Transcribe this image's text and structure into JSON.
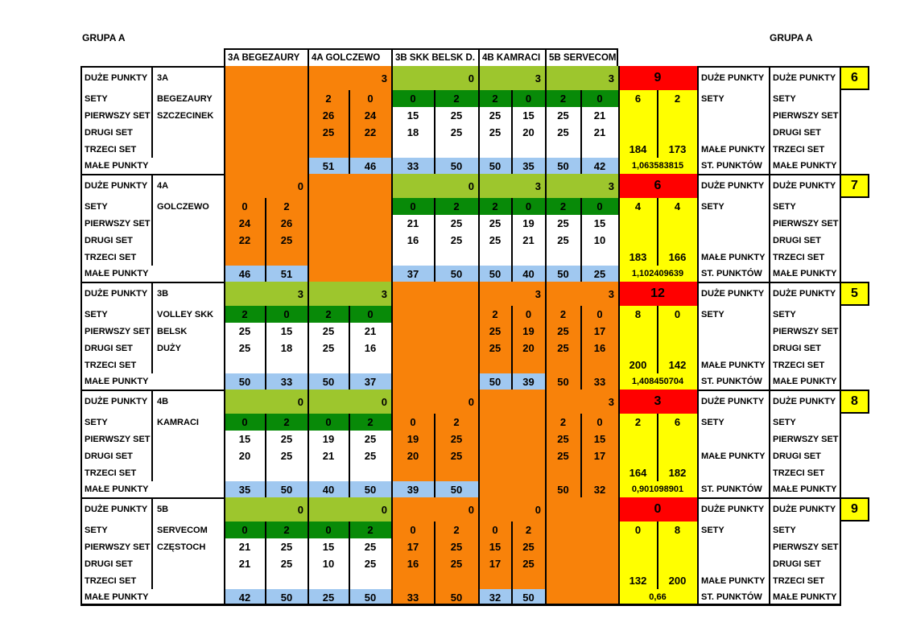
{
  "group_label_left": "GRUPA A",
  "group_label_right": "GRUPA A",
  "colors": {
    "orange": "#F8820A",
    "light_green": "#9DC62D",
    "dark_green": "#088A08",
    "red": "#FF0000",
    "yellow": "#FFFF00",
    "light_blue": "#A0C8F0",
    "border": "#000000"
  },
  "header": {
    "columns": [
      "3A BEGEZAURY",
      "4A GOLCZEWO",
      "3B SKK BELSK D.",
      "4B KAMRACI",
      "5B SERVECOM"
    ]
  },
  "row_labels_left": [
    "DUŻE PUNKTY",
    "SETY",
    "PIERWSZY SET",
    "DRUGI SET",
    "TRZECI SET",
    "MAŁE PUNKTY"
  ],
  "right_labels_full": [
    "DUŻE PUNKTY",
    "SETY",
    "PIERWSZY SET",
    "DRUGI SET",
    "TRZECI SET",
    "MAŁE PUNKTY"
  ],
  "blocks": [
    {
      "team_lines": [
        "3A",
        "BEGEZAURY",
        "SZCZECINEK",
        "",
        "",
        ""
      ],
      "col3_labels": [
        "DUŻE PUNKTY",
        "SETY",
        "",
        "",
        "MAŁE PUNKTY",
        "ST. PUNKTÓW"
      ],
      "rank": "6",
      "summary": {
        "big_points": "9",
        "sets": [
          "6",
          "2"
        ],
        "small_points": [
          "184",
          "173"
        ],
        "ratio": "1,063583815"
      },
      "games": [
        {
          "self": true
        },
        {
          "big": "3",
          "big_bg": "orange",
          "sets": [
            "2",
            "0"
          ],
          "sets_bg": "orange",
          "set1": [
            "26",
            "24"
          ],
          "set2": [
            "25",
            "22"
          ],
          "set3": [
            "",
            ""
          ],
          "body_bg": "orange",
          "small": [
            "51",
            "46"
          ],
          "small_bg": "blue"
        },
        {
          "big": "0",
          "big_bg": "green",
          "sets": [
            "0",
            "2"
          ],
          "sets_bg": "dgreen",
          "set1": [
            "15",
            "25"
          ],
          "set2": [
            "18",
            "25"
          ],
          "set3": [
            "",
            ""
          ],
          "body_bg": "white",
          "small": [
            "33",
            "50"
          ],
          "small_bg": "blue"
        },
        {
          "big": "3",
          "big_bg": "green",
          "sets": [
            "2",
            "0"
          ],
          "sets_bg": "dgreen",
          "set1": [
            "25",
            "15"
          ],
          "set2": [
            "25",
            "20"
          ],
          "set3": [
            "",
            ""
          ],
          "body_bg": "white",
          "small": [
            "50",
            "35"
          ],
          "small_bg": "blue"
        },
        {
          "big": "3",
          "big_bg": "green",
          "sets": [
            "2",
            "0"
          ],
          "sets_bg": "dgreen",
          "set1": [
            "25",
            "21"
          ],
          "set2": [
            "25",
            "21"
          ],
          "set3": [
            "",
            ""
          ],
          "body_bg": "white",
          "small": [
            "50",
            "42"
          ],
          "small_bg": "blue"
        }
      ]
    },
    {
      "team_lines": [
        "4A",
        "GOLCZEWO",
        "",
        "",
        "",
        ""
      ],
      "col3_labels": [
        "DUŻE PUNKTY",
        "SETY",
        "",
        "",
        "MAŁE PUNKTY",
        "ST. PUNKTÓW"
      ],
      "rank": "7",
      "summary": {
        "big_points": "6",
        "sets": [
          "4",
          "4"
        ],
        "small_points": [
          "183",
          "166"
        ],
        "ratio": "1,102409639"
      },
      "games": [
        {
          "big": "0",
          "big_bg": "orange",
          "sets": [
            "0",
            "2"
          ],
          "sets_bg": "orange",
          "set1": [
            "24",
            "26"
          ],
          "set2": [
            "22",
            "25"
          ],
          "set3": [
            "",
            ""
          ],
          "body_bg": "orange",
          "small": [
            "46",
            "51"
          ],
          "small_bg": "blue"
        },
        {
          "self": true
        },
        {
          "big": "0",
          "big_bg": "green",
          "sets": [
            "0",
            "2"
          ],
          "sets_bg": "dgreen",
          "set1": [
            "21",
            "25"
          ],
          "set2": [
            "16",
            "25"
          ],
          "set3": [
            "",
            ""
          ],
          "body_bg": "white",
          "small": [
            "37",
            "50"
          ],
          "small_bg": "blue"
        },
        {
          "big": "3",
          "big_bg": "green",
          "sets": [
            "2",
            "0"
          ],
          "sets_bg": "dgreen",
          "set1": [
            "25",
            "19"
          ],
          "set2": [
            "25",
            "21"
          ],
          "set3": [
            "",
            ""
          ],
          "body_bg": "white",
          "small": [
            "50",
            "40"
          ],
          "small_bg": "blue"
        },
        {
          "big": "3",
          "big_bg": "green",
          "sets": [
            "2",
            "0"
          ],
          "sets_bg": "dgreen",
          "set1": [
            "25",
            "15"
          ],
          "set2": [
            "25",
            "10"
          ],
          "set3": [
            "",
            ""
          ],
          "body_bg": "white",
          "small": [
            "50",
            "25"
          ],
          "small_bg": "blue"
        }
      ]
    },
    {
      "team_lines": [
        "3B",
        "VOLLEY SKK",
        "BELSK",
        "DUŻY",
        "",
        ""
      ],
      "col3_labels": [
        "DUŻE PUNKTY",
        "SETY",
        "",
        "",
        "MAŁE PUNKTY",
        "ST. PUNKTÓW"
      ],
      "rank": "5",
      "summary": {
        "big_points": "12",
        "sets": [
          "8",
          "0"
        ],
        "small_points": [
          "200",
          "142"
        ],
        "ratio": "1,408450704"
      },
      "games": [
        {
          "big": "3",
          "big_bg": "green",
          "sets": [
            "2",
            "0"
          ],
          "sets_bg": "dgreen",
          "set1": [
            "25",
            "15"
          ],
          "set2": [
            "25",
            "18"
          ],
          "set3": [
            "",
            ""
          ],
          "body_bg": "white",
          "small": [
            "50",
            "33"
          ],
          "small_bg": "blue"
        },
        {
          "big": "3",
          "big_bg": "green",
          "sets": [
            "2",
            "0"
          ],
          "sets_bg": "dgreen",
          "set1": [
            "25",
            "21"
          ],
          "set2": [
            "25",
            "16"
          ],
          "set3": [
            "",
            ""
          ],
          "body_bg": "white",
          "small": [
            "50",
            "37"
          ],
          "small_bg": "blue"
        },
        {
          "self": true
        },
        {
          "big": "3",
          "big_bg": "orange",
          "sets": [
            "2",
            "0"
          ],
          "sets_bg": "orange",
          "set1": [
            "25",
            "19"
          ],
          "set2": [
            "25",
            "20"
          ],
          "set3": [
            "",
            ""
          ],
          "body_bg": "orange",
          "small": [
            "50",
            "39"
          ],
          "small_bg": "blue"
        },
        {
          "big": "3",
          "big_bg": "orange",
          "sets": [
            "2",
            "0"
          ],
          "sets_bg": "orange",
          "set1": [
            "25",
            "17"
          ],
          "set2": [
            "25",
            "16"
          ],
          "set3": [
            "",
            ""
          ],
          "body_bg": "orange",
          "small": [
            "50",
            "33"
          ],
          "small_bg": "orange"
        }
      ]
    },
    {
      "team_lines": [
        "4B",
        "KAMRACI",
        "",
        "",
        "",
        ""
      ],
      "col3_labels": [
        "DUŻE PUNKTY",
        "SETY",
        "",
        "MAŁE PUNKTY",
        "",
        "ST. PUNKTÓW"
      ],
      "rank": "8",
      "summary": {
        "big_points": "3",
        "sets": [
          "2",
          "6"
        ],
        "small_points": [
          "164",
          "182"
        ],
        "ratio": "0,901098901"
      },
      "games": [
        {
          "big": "0",
          "big_bg": "green",
          "sets": [
            "0",
            "2"
          ],
          "sets_bg": "dgreen",
          "set1": [
            "15",
            "25"
          ],
          "set2": [
            "20",
            "25"
          ],
          "set3": [
            "",
            ""
          ],
          "body_bg": "white",
          "small": [
            "35",
            "50"
          ],
          "small_bg": "blue"
        },
        {
          "big": "0",
          "big_bg": "green",
          "sets": [
            "0",
            "2"
          ],
          "sets_bg": "dgreen",
          "set1": [
            "19",
            "25"
          ],
          "set2": [
            "21",
            "25"
          ],
          "set3": [
            "",
            ""
          ],
          "body_bg": "white",
          "small": [
            "40",
            "50"
          ],
          "small_bg": "blue"
        },
        {
          "big": "0",
          "big_bg": "orange",
          "sets": [
            "0",
            "2"
          ],
          "sets_bg": "orange",
          "set1": [
            "19",
            "25"
          ],
          "set2": [
            "20",
            "25"
          ],
          "set3": [
            "",
            ""
          ],
          "body_bg": "orange",
          "small": [
            "39",
            "50"
          ],
          "small_bg": "blue"
        },
        {
          "self": true
        },
        {
          "big": "3",
          "big_bg": "orange",
          "sets": [
            "2",
            "0"
          ],
          "sets_bg": "orange",
          "set1": [
            "25",
            "15"
          ],
          "set2": [
            "25",
            "17"
          ],
          "set3": [
            "",
            ""
          ],
          "body_bg": "orange",
          "small": [
            "50",
            "32"
          ],
          "small_bg": "orange"
        }
      ]
    },
    {
      "team_lines": [
        "5B",
        "SERVECOM",
        "CZĘSTOCH",
        "",
        "",
        ""
      ],
      "col3_labels": [
        "DUŻE PUNKTY",
        "SETY",
        "",
        "",
        "MAŁE PUNKTY",
        "ST. PUNKTÓW"
      ],
      "rank": "9",
      "summary": {
        "big_points": "0",
        "sets": [
          "0",
          "8"
        ],
        "small_points": [
          "132",
          "200"
        ],
        "ratio": "0,66"
      },
      "games": [
        {
          "big": "0",
          "big_bg": "green",
          "sets": [
            "0",
            "2"
          ],
          "sets_bg": "dgreen",
          "set1": [
            "21",
            "25"
          ],
          "set2": [
            "21",
            "25"
          ],
          "set3": [
            "",
            ""
          ],
          "body_bg": "white",
          "small": [
            "42",
            "50"
          ],
          "small_bg": "blue"
        },
        {
          "big": "0",
          "big_bg": "green",
          "sets": [
            "0",
            "2"
          ],
          "sets_bg": "dgreen",
          "set1": [
            "15",
            "25"
          ],
          "set2": [
            "10",
            "25"
          ],
          "set3": [
            "",
            ""
          ],
          "body_bg": "white",
          "small": [
            "25",
            "50"
          ],
          "small_bg": "blue"
        },
        {
          "big": "0",
          "big_bg": "orange",
          "sets": [
            "0",
            "2"
          ],
          "sets_bg": "orange",
          "set1": [
            "17",
            "25"
          ],
          "set2": [
            "16",
            "25"
          ],
          "set3": [
            "",
            ""
          ],
          "body_bg": "orange",
          "small": [
            "33",
            "50"
          ],
          "small_bg": "orange"
        },
        {
          "big": "0",
          "big_bg": "orange",
          "sets": [
            "0",
            "2"
          ],
          "sets_bg": "orange",
          "set1": [
            "15",
            "25"
          ],
          "set2": [
            "17",
            "25"
          ],
          "set3": [
            "",
            ""
          ],
          "body_bg": "orange",
          "small": [
            "32",
            "50"
          ],
          "small_bg": "blue"
        },
        {
          "self": true
        }
      ]
    }
  ]
}
